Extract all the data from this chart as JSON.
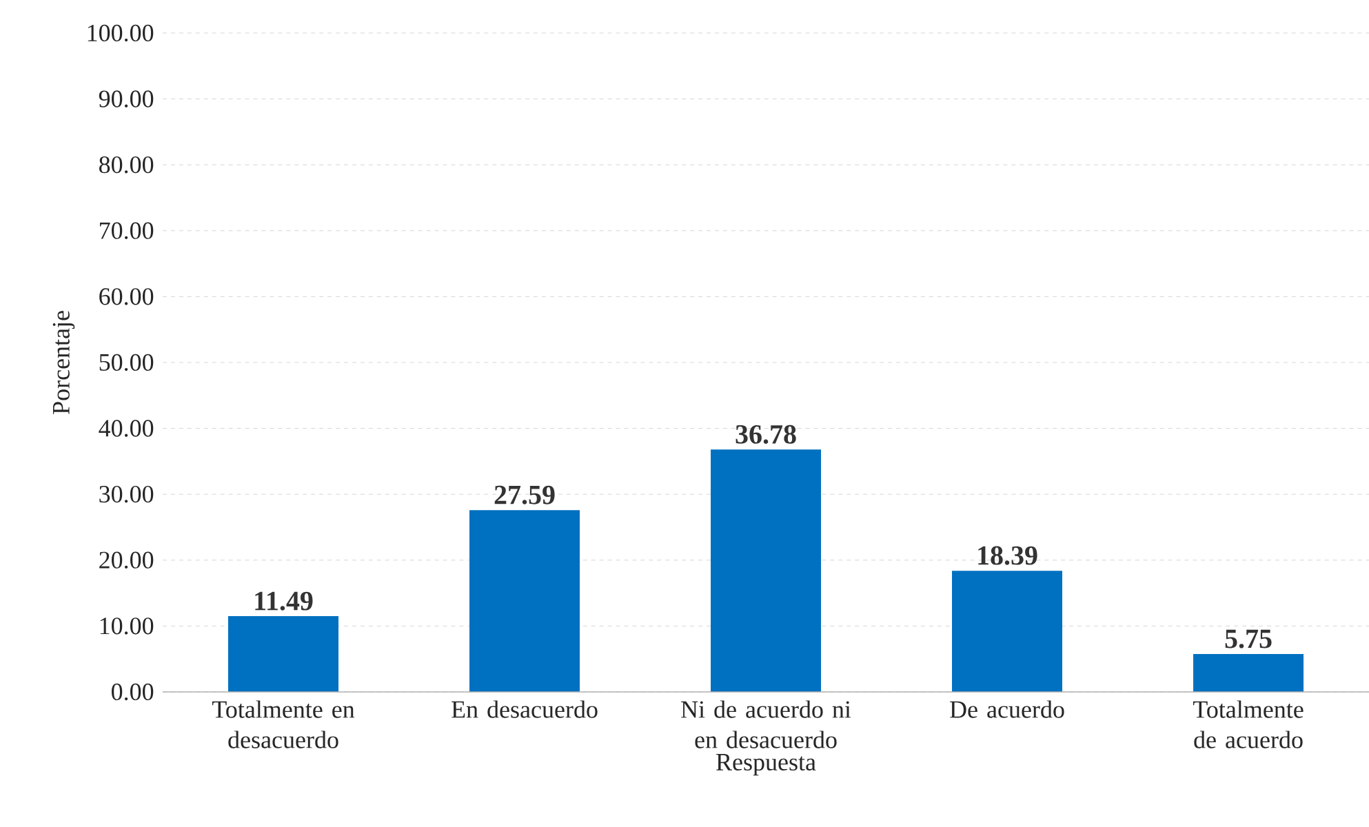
{
  "chart_data": {
    "type": "bar",
    "xlabel": "Respuesta",
    "ylabel": "Porcentaje",
    "categories": [
      "Totalmente en desacuerdo",
      "En desacuerdo",
      "Ni de acuerdo ni en desacuerdo",
      "De acuerdo",
      "Totalmente de acuerdo"
    ],
    "values": [
      11.49,
      27.59,
      36.78,
      18.39,
      5.75
    ],
    "color": "#0070c0",
    "ylim": [
      0,
      100
    ],
    "yticks": [
      {
        "value": 0,
        "label": "0.00"
      },
      {
        "value": 10,
        "label": "10.00"
      },
      {
        "value": 20,
        "label": "20.00"
      },
      {
        "value": 30,
        "label": "30.00"
      },
      {
        "value": 40,
        "label": "40.00"
      },
      {
        "value": 50,
        "label": "50.00"
      },
      {
        "value": 60,
        "label": "60.00"
      },
      {
        "value": 70,
        "label": "70.00"
      },
      {
        "value": 80,
        "label": "80.00"
      },
      {
        "value": 90,
        "label": "90.00"
      },
      {
        "value": 100,
        "label": "100.00"
      }
    ],
    "grid": "y",
    "data_labels": true
  }
}
